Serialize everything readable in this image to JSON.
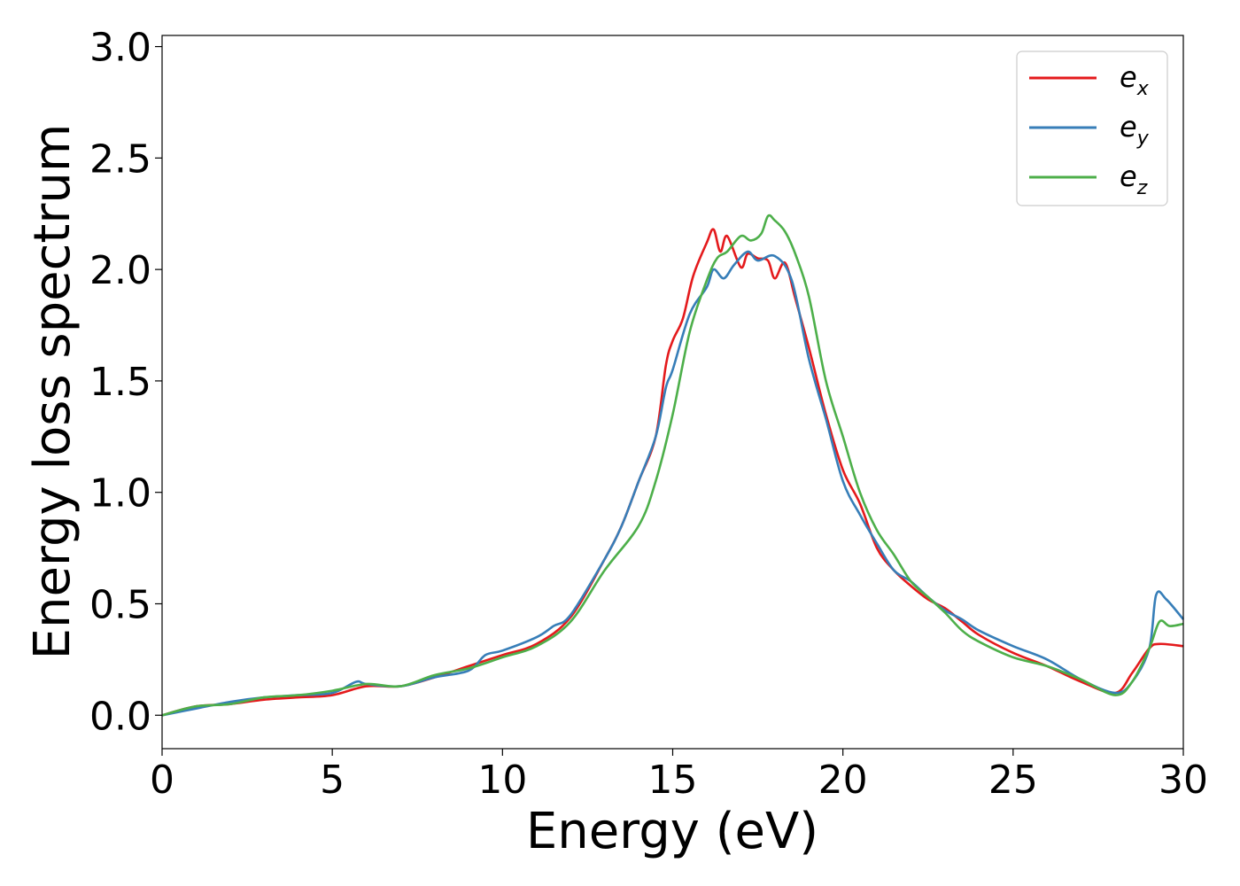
{
  "chart_data": {
    "type": "line",
    "title": "",
    "xlabel": "Energy (eV)",
    "ylabel": "Energy loss spectrum",
    "xlim": [
      0,
      30
    ],
    "ylim": [
      -0.15,
      3.05
    ],
    "x_ticks": [
      "0",
      "5",
      "10",
      "15",
      "20",
      "25",
      "30"
    ],
    "y_ticks": [
      "0.0",
      "0.5",
      "1.0",
      "1.5",
      "2.0",
      "2.5",
      "3.0"
    ],
    "grid": false,
    "legend_position": "top-right",
    "series": [
      {
        "name": "e",
        "subscript": "x",
        "color": "#e41a1c",
        "points": [
          [
            0,
            0
          ],
          [
            1,
            0.04
          ],
          [
            2,
            0.05
          ],
          [
            3,
            0.07
          ],
          [
            4,
            0.08
          ],
          [
            5,
            0.09
          ],
          [
            6,
            0.13
          ],
          [
            7,
            0.13
          ],
          [
            8,
            0.17
          ],
          [
            9,
            0.22
          ],
          [
            10,
            0.27
          ],
          [
            11,
            0.32
          ],
          [
            12,
            0.44
          ],
          [
            13,
            0.7
          ],
          [
            13.5,
            0.85
          ],
          [
            14,
            1.05
          ],
          [
            14.5,
            1.25
          ],
          [
            14.8,
            1.57
          ],
          [
            15,
            1.68
          ],
          [
            15.3,
            1.78
          ],
          [
            15.6,
            1.97
          ],
          [
            16,
            2.12
          ],
          [
            16.2,
            2.18
          ],
          [
            16.4,
            2.08
          ],
          [
            16.6,
            2.15
          ],
          [
            17,
            2.01
          ],
          [
            17.2,
            2.07
          ],
          [
            17.5,
            2.05
          ],
          [
            17.8,
            2.04
          ],
          [
            18,
            1.96
          ],
          [
            18.3,
            2.03
          ],
          [
            18.6,
            1.87
          ],
          [
            19,
            1.65
          ],
          [
            19.5,
            1.35
          ],
          [
            20,
            1.1
          ],
          [
            20.5,
            0.95
          ],
          [
            21,
            0.75
          ],
          [
            21.5,
            0.65
          ],
          [
            22,
            0.58
          ],
          [
            22.5,
            0.52
          ],
          [
            23,
            0.48
          ],
          [
            23.5,
            0.42
          ],
          [
            24,
            0.36
          ],
          [
            25,
            0.28
          ],
          [
            26,
            0.22
          ],
          [
            27,
            0.15
          ],
          [
            28,
            0.1
          ],
          [
            28.5,
            0.19
          ],
          [
            29,
            0.3
          ],
          [
            29.3,
            0.32
          ],
          [
            30,
            0.31
          ]
        ]
      },
      {
        "name": "e",
        "subscript": "y",
        "color": "#377eb8",
        "points": [
          [
            0,
            0
          ],
          [
            1,
            0.03
          ],
          [
            2,
            0.06
          ],
          [
            3,
            0.08
          ],
          [
            4,
            0.09
          ],
          [
            5,
            0.1
          ],
          [
            5.7,
            0.15
          ],
          [
            6,
            0.14
          ],
          [
            7,
            0.13
          ],
          [
            8,
            0.17
          ],
          [
            9,
            0.2
          ],
          [
            9.5,
            0.27
          ],
          [
            10,
            0.29
          ],
          [
            11,
            0.35
          ],
          [
            11.5,
            0.4
          ],
          [
            12,
            0.45
          ],
          [
            13,
            0.7
          ],
          [
            13.5,
            0.85
          ],
          [
            14,
            1.05
          ],
          [
            14.5,
            1.25
          ],
          [
            14.8,
            1.47
          ],
          [
            15,
            1.55
          ],
          [
            15.5,
            1.8
          ],
          [
            16,
            1.92
          ],
          [
            16.2,
            2.0
          ],
          [
            16.5,
            1.96
          ],
          [
            16.8,
            2.02
          ],
          [
            17.2,
            2.08
          ],
          [
            17.5,
            2.04
          ],
          [
            18,
            2.06
          ],
          [
            18.5,
            1.95
          ],
          [
            19,
            1.6
          ],
          [
            19.5,
            1.33
          ],
          [
            20,
            1.05
          ],
          [
            20.5,
            0.9
          ],
          [
            21,
            0.77
          ],
          [
            21.5,
            0.65
          ],
          [
            22,
            0.6
          ],
          [
            22.5,
            0.53
          ],
          [
            23,
            0.47
          ],
          [
            23.5,
            0.43
          ],
          [
            24,
            0.38
          ],
          [
            25,
            0.31
          ],
          [
            26,
            0.25
          ],
          [
            27,
            0.16
          ],
          [
            28,
            0.1
          ],
          [
            28.5,
            0.15
          ],
          [
            29,
            0.3
          ],
          [
            29.2,
            0.54
          ],
          [
            29.5,
            0.52
          ],
          [
            30,
            0.43
          ]
        ]
      },
      {
        "name": "e",
        "subscript": "z",
        "color": "#4daf4a",
        "points": [
          [
            0,
            0
          ],
          [
            1,
            0.04
          ],
          [
            2,
            0.05
          ],
          [
            3,
            0.08
          ],
          [
            4,
            0.09
          ],
          [
            5,
            0.11
          ],
          [
            6,
            0.14
          ],
          [
            7,
            0.13
          ],
          [
            8,
            0.18
          ],
          [
            9,
            0.21
          ],
          [
            10,
            0.26
          ],
          [
            11,
            0.31
          ],
          [
            12,
            0.42
          ],
          [
            13,
            0.65
          ],
          [
            14,
            0.85
          ],
          [
            14.5,
            1.05
          ],
          [
            15,
            1.35
          ],
          [
            15.5,
            1.72
          ],
          [
            16,
            1.95
          ],
          [
            16.3,
            2.05
          ],
          [
            16.6,
            2.08
          ],
          [
            17,
            2.15
          ],
          [
            17.3,
            2.13
          ],
          [
            17.6,
            2.16
          ],
          [
            17.8,
            2.24
          ],
          [
            18,
            2.22
          ],
          [
            18.3,
            2.17
          ],
          [
            18.6,
            2.07
          ],
          [
            19,
            1.88
          ],
          [
            19.5,
            1.5
          ],
          [
            20,
            1.25
          ],
          [
            20.5,
            1.0
          ],
          [
            21,
            0.83
          ],
          [
            21.5,
            0.72
          ],
          [
            22,
            0.6
          ],
          [
            22.5,
            0.53
          ],
          [
            23,
            0.46
          ],
          [
            23.5,
            0.38
          ],
          [
            24,
            0.33
          ],
          [
            25,
            0.26
          ],
          [
            26,
            0.22
          ],
          [
            27,
            0.16
          ],
          [
            28,
            0.09
          ],
          [
            28.5,
            0.15
          ],
          [
            29,
            0.3
          ],
          [
            29.3,
            0.42
          ],
          [
            29.6,
            0.4
          ],
          [
            30,
            0.41
          ]
        ]
      }
    ]
  }
}
